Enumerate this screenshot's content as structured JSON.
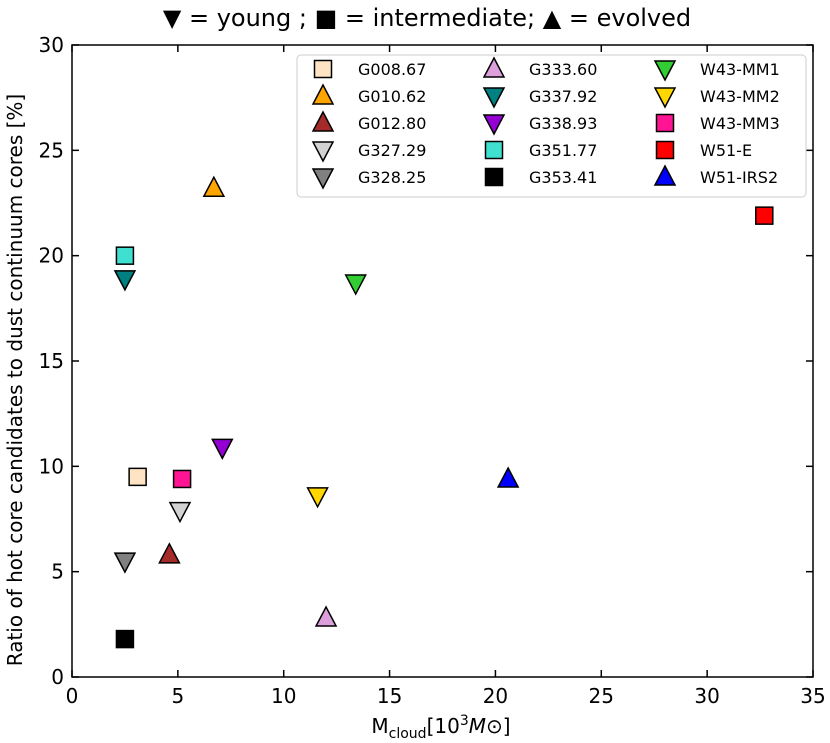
{
  "chart_data": {
    "type": "scatter",
    "title": "▼ = young ; ■ = intermediate; ▲ = evolved",
    "xlabel": {
      "prefix": "M",
      "subscript": "cloud",
      "bracket_open": "[10",
      "superscript": "3",
      "unit": "M⊙",
      "bracket_close": "]"
    },
    "ylabel": "Ratio of hot core candidates to dust continuum cores  [%]",
    "xlim": [
      0,
      35
    ],
    "ylim": [
      0,
      30
    ],
    "x_ticks": [
      0,
      5,
      10,
      15,
      20,
      25,
      30,
      35
    ],
    "y_ticks": [
      0,
      5,
      10,
      15,
      20,
      25,
      30
    ],
    "legend_location": "top-right",
    "marker_legend": {
      "young": "triangle-down",
      "intermediate": "square",
      "evolved": "triangle-up"
    },
    "series": [
      {
        "name": "G008.67",
        "marker": "square",
        "color": "#ffe4c4",
        "x": 3.1,
        "y": 9.5
      },
      {
        "name": "G010.62",
        "marker": "triangle-up",
        "color": "#ffa500",
        "x": 6.7,
        "y": 23.2
      },
      {
        "name": "G012.80",
        "marker": "triangle-up",
        "color": "#a52a2a",
        "x": 4.6,
        "y": 5.8
      },
      {
        "name": "G327.29",
        "marker": "triangle-down",
        "color": "#d3d3d3",
        "x": 5.1,
        "y": 7.9
      },
      {
        "name": "G328.25",
        "marker": "triangle-down",
        "color": "#808080",
        "x": 2.5,
        "y": 5.5
      },
      {
        "name": "G333.60",
        "marker": "triangle-up",
        "color": "#dda0dd",
        "x": 12.0,
        "y": 2.8
      },
      {
        "name": "G337.92",
        "marker": "triangle-down",
        "color": "#008080",
        "x": 2.5,
        "y": 18.9
      },
      {
        "name": "G338.93",
        "marker": "triangle-down",
        "color": "#9400d3",
        "x": 7.1,
        "y": 10.9
      },
      {
        "name": "G351.77",
        "marker": "square",
        "color": "#40e0d0",
        "x": 2.5,
        "y": 20.0
      },
      {
        "name": "G353.41",
        "marker": "square",
        "color": "#000000",
        "x": 2.5,
        "y": 1.8
      },
      {
        "name": "W43-MM1",
        "marker": "triangle-down",
        "color": "#32cd32",
        "x": 13.4,
        "y": 18.7
      },
      {
        "name": "W43-MM2",
        "marker": "triangle-down",
        "color": "#ffd700",
        "x": 11.6,
        "y": 8.6
      },
      {
        "name": "W43-MM3",
        "marker": "square",
        "color": "#ff1493",
        "x": 5.2,
        "y": 9.4
      },
      {
        "name": "W51-E",
        "marker": "square",
        "color": "#ff0000",
        "x": 32.7,
        "y": 21.9
      },
      {
        "name": "W51-IRS2",
        "marker": "triangle-up",
        "color": "#0000ff",
        "x": 20.6,
        "y": 9.4
      }
    ]
  }
}
